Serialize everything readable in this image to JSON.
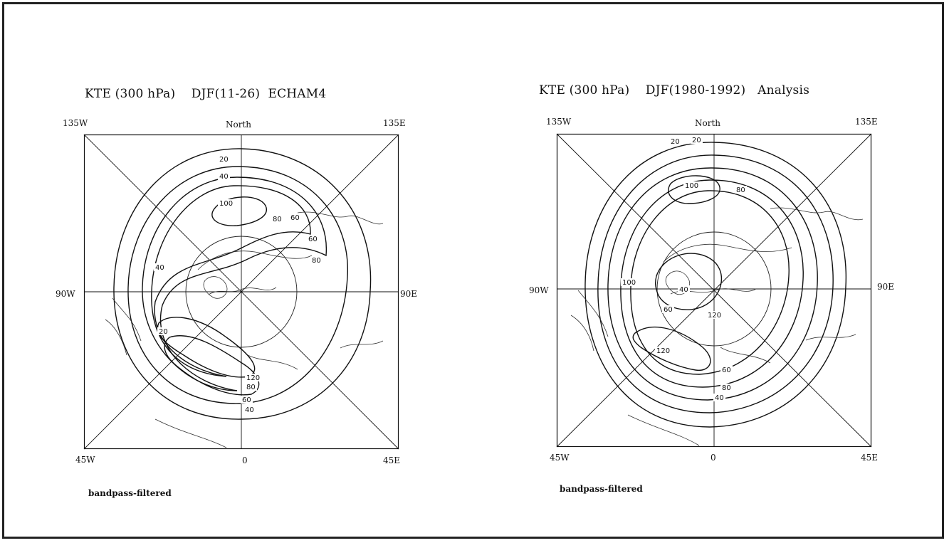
{
  "figure": {
    "panels": [
      {
        "title": "KTE (300 hPa)    DJF(11-26)  ECHAM4",
        "corners": {
          "top_left": "135W",
          "top_center": "North",
          "top_right": "135E",
          "mid_left": "90W",
          "mid_right": "90E",
          "bottom_left": "45W",
          "bottom_center": "0",
          "bottom_right": "45E"
        },
        "contour_labels": [
          "20",
          "40",
          "100",
          "80",
          "60",
          "60",
          "40",
          "80",
          "20",
          "120",
          "80",
          "60",
          "40"
        ],
        "footnote": "bandpass-filtered"
      },
      {
        "title": "KTE (300 hPa)    DJF(1980-1992)   Analysis",
        "corners": {
          "top_left": "135W",
          "top_center": "North",
          "top_right": "135E",
          "mid_left": "90W",
          "mid_right": "90E",
          "bottom_left": "45W",
          "bottom_center": "0",
          "bottom_right": "45E"
        },
        "contour_labels": [
          "20",
          "100",
          "80",
          "100",
          "120",
          "60",
          "40",
          "40",
          "120",
          "60",
          "80",
          "20"
        ],
        "footnote": "bandpass-filtered"
      }
    ]
  }
}
